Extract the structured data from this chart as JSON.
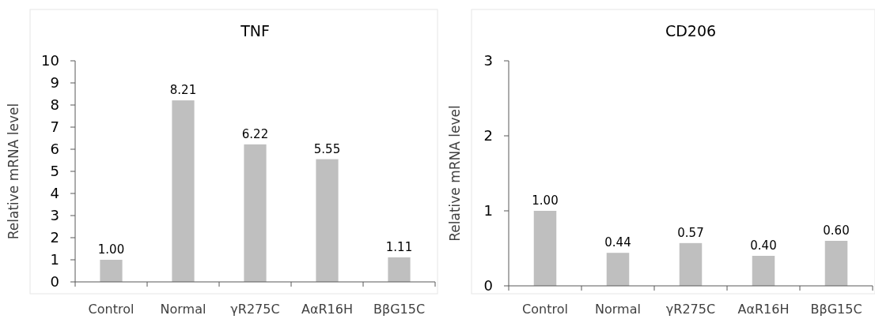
{
  "chart_data": [
    {
      "type": "bar",
      "title": "TNF",
      "ylabel": "Relative mRNA level",
      "categories": [
        "Control",
        "Normal",
        "γR275C",
        "AαR16H",
        "BβG15C"
      ],
      "values": [
        1.0,
        8.21,
        6.22,
        5.55,
        1.11
      ],
      "value_labels": [
        "1.00",
        "8.21",
        "6.22",
        "5.55",
        "1.11"
      ],
      "color": "#bfbfbf",
      "ylim": [
        0,
        10
      ],
      "yticks": [
        0,
        1,
        2,
        3,
        4,
        5,
        6,
        7,
        8,
        9,
        10
      ]
    },
    {
      "type": "bar",
      "title": "CD206",
      "ylabel": "Relative mRNA level",
      "categories": [
        "Control",
        "Normal",
        "γR275C",
        "AαR16H",
        "BβG15C"
      ],
      "values": [
        1.0,
        0.44,
        0.57,
        0.4,
        0.6
      ],
      "value_labels": [
        "1.00",
        "0.44",
        "0.57",
        "0.40",
        "0.60"
      ],
      "color": "#bfbfbf",
      "ylim": [
        0,
        3
      ],
      "yticks": [
        0,
        1,
        2,
        3
      ]
    }
  ]
}
